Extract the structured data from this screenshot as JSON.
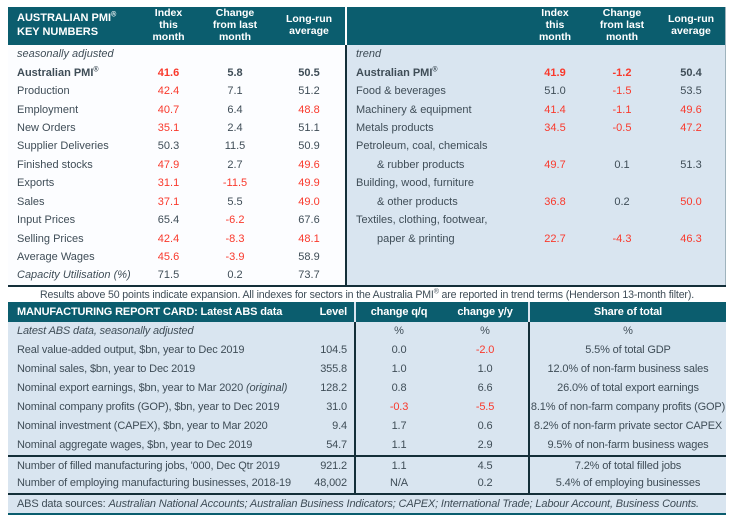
{
  "colors": {
    "teal_header": "#0B5D6E",
    "dark_rule": "#142f39",
    "light_blue_bg": "#D9E5F0",
    "negative_red": "#F9392C",
    "body_text": "#3F4D57"
  },
  "top_left": {
    "title": "AUSTRALIAN PMI® KEY NUMBERS",
    "col_headers": [
      "Index this month",
      "Change from last month",
      "Long-run average"
    ],
    "rows": [
      {
        "label": "seasonally adjusted",
        "style": "italic"
      },
      {
        "label": "Australian PMI®",
        "style": "bold",
        "values": [
          "41.6",
          "5.8",
          "50.5"
        ],
        "red": [
          true,
          false,
          false
        ]
      },
      {
        "label": "Production",
        "values": [
          "42.4",
          "7.1",
          "51.2"
        ],
        "red": [
          true,
          false,
          false
        ]
      },
      {
        "label": "Employment",
        "values": [
          "40.7",
          "6.4",
          "48.8"
        ],
        "red": [
          true,
          false,
          true
        ]
      },
      {
        "label": "New Orders",
        "values": [
          "35.1",
          "2.4",
          "51.1"
        ],
        "red": [
          true,
          false,
          false
        ]
      },
      {
        "label": "Supplier Deliveries",
        "values": [
          "50.3",
          "11.5",
          "50.9"
        ],
        "red": [
          false,
          false,
          false
        ]
      },
      {
        "label": "Finished stocks",
        "values": [
          "47.9",
          "2.7",
          "49.6"
        ],
        "red": [
          true,
          false,
          true
        ]
      },
      {
        "label": "Exports",
        "values": [
          "31.1",
          "-11.5",
          "49.9"
        ],
        "red": [
          true,
          true,
          true
        ]
      },
      {
        "label": "Sales",
        "values": [
          "37.1",
          "5.5",
          "49.0"
        ],
        "red": [
          true,
          false,
          true
        ]
      },
      {
        "label": "Input Prices",
        "values": [
          "65.4",
          "-6.2",
          "67.6"
        ],
        "red": [
          false,
          true,
          false
        ]
      },
      {
        "label": "Selling Prices",
        "values": [
          "42.4",
          "-8.3",
          "48.1"
        ],
        "red": [
          true,
          true,
          true
        ]
      },
      {
        "label": "Average Wages",
        "values": [
          "45.6",
          "-3.9",
          "58.9"
        ],
        "red": [
          true,
          true,
          false
        ]
      },
      {
        "label": "Capacity Utilisation (%)",
        "style": "italic",
        "values": [
          "71.5",
          "0.2",
          "73.7"
        ],
        "red": [
          false,
          false,
          false
        ]
      }
    ]
  },
  "top_right": {
    "title": "",
    "col_headers": [
      "Index this month",
      "Change from last month",
      "Long-run average"
    ],
    "rows": [
      {
        "label": "trend",
        "style": "italic"
      },
      {
        "label": "Australian PMI®",
        "style": "bold",
        "values": [
          "41.9",
          "-1.2",
          "50.4"
        ],
        "red": [
          true,
          true,
          false
        ]
      },
      {
        "label": "Food & beverages",
        "values": [
          "51.0",
          "-1.5",
          "53.5"
        ],
        "red": [
          false,
          true,
          false
        ]
      },
      {
        "label": "Machinery & equipment",
        "values": [
          "41.4",
          "-1.1",
          "49.6"
        ],
        "red": [
          true,
          true,
          true
        ]
      },
      {
        "label": "Metals products",
        "values": [
          "34.5",
          "-0.5",
          "47.2"
        ],
        "red": [
          true,
          true,
          true
        ]
      },
      {
        "label": "Petroleum, coal, chemicals"
      },
      {
        "label": "& rubber products",
        "indent": true,
        "values": [
          "49.7",
          "0.1",
          "51.3"
        ],
        "red": [
          true,
          false,
          false
        ]
      },
      {
        "label": "Building, wood, furniture"
      },
      {
        "label": "& other products",
        "indent": true,
        "values": [
          "36.8",
          "0.2",
          "50.0"
        ],
        "red": [
          true,
          false,
          true
        ]
      },
      {
        "label": "Textiles, clothing, footwear,"
      },
      {
        "label": "paper & printing",
        "indent": true,
        "values": [
          "22.7",
          "-4.3",
          "46.3"
        ],
        "red": [
          true,
          true,
          true
        ]
      }
    ]
  },
  "note": "Results above 50 points indicate expansion. All indexes for sectors in the Australia PMI® are reported in trend terms (Henderson 13-month filter).",
  "bottom": {
    "title": "MANUFACTURING REPORT CARD: Latest ABS data",
    "col_headers": {
      "level": "Level",
      "qq": "change q/q",
      "yy": "change y/y",
      "share": "Share of total"
    },
    "subheader": {
      "label": "Latest ABS data, seasonally adjusted",
      "qq": "%",
      "yy": "%",
      "share": "%"
    },
    "rows": [
      {
        "label": "Real value-added output, $bn, year to Dec 2019",
        "level": "104.5",
        "qq": "0.0",
        "yy": "-2.0",
        "yy_red": true,
        "share": "5.5% of total GDP"
      },
      {
        "label": "Nominal sales, $bn, year to Dec 2019",
        "level": "355.8",
        "qq": "1.0",
        "yy": "1.0",
        "share": "12.0% of non-farm business sales"
      },
      {
        "label": "Nominal export earnings, $bn, year to Mar 2020",
        "label_italic": "(original)",
        "level": "128.2",
        "qq": "0.8",
        "yy": "6.6",
        "share": "26.0% of total export earnings"
      },
      {
        "label": "Nominal company profits (GOP), $bn, year to Dec 2019",
        "level": "31.0",
        "qq": "-0.3",
        "qq_red": true,
        "yy": "-5.5",
        "yy_red": true,
        "share": "8.1% of non-farm company profits (GOP)"
      },
      {
        "label": "Nominal investment (CAPEX), $bn, year to Mar 2020",
        "level": "9.4",
        "qq": "1.7",
        "yy": "0.6",
        "share": "8.2% of non-farm private sector CAPEX"
      },
      {
        "label": "Nominal aggregate wages, $bn, year to Dec 2019",
        "level": "54.7",
        "qq": "1.1",
        "yy": "2.9",
        "share": "9.5% of non-farm business wages"
      },
      {
        "label": "Number of filled manufacturing jobs, '000, Dec Qtr 2019",
        "level": "921.2",
        "qq": "1.1",
        "yy": "4.5",
        "share": "7.2% of total filled jobs",
        "group": 2
      },
      {
        "label": "Number of employing manufacturing businesses, 2018-19",
        "level": "48,002",
        "qq": "N/A",
        "yy": "0.2",
        "share": "5.4% of employing businesses",
        "group": 2
      }
    ],
    "footer_prefix": "ABS data sources: ",
    "footer_sources": "Australian National Accounts; Australian Business Indicators; CAPEX; International Trade; Labour Account, Business Counts."
  }
}
